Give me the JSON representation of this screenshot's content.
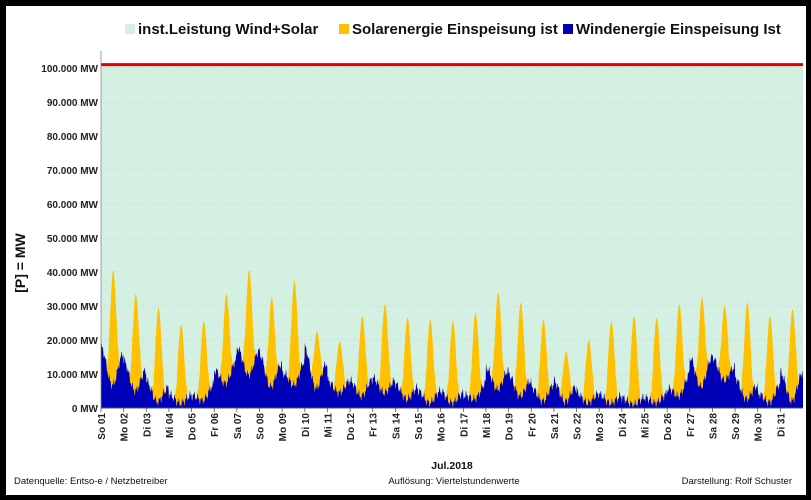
{
  "colors": {
    "installed": "#d4f0e2",
    "solar": "#ffc000",
    "wind": "#0000b8",
    "installed_line": "#e00000",
    "grid": "#9fbfaf"
  },
  "chart_data": {
    "type": "area",
    "stacked": true,
    "title": "",
    "xlabel": "Jul.2018",
    "ylabel": "[P] =   MW",
    "ylim": [
      0,
      105000
    ],
    "grid": true,
    "legend_position": "top",
    "legend": [
      {
        "name": "inst.Leistung Wind+Solar",
        "color": "#d4f0e2"
      },
      {
        "name": "Solarenergie Einspeisung ist",
        "color": "#ffc000"
      },
      {
        "name": "Windenergie Einspeisung Ist",
        "color": "#0000b8"
      }
    ],
    "y_ticks": [
      {
        "value": 0,
        "label": "0 MW"
      },
      {
        "value": 10000,
        "label": "10.000 MW"
      },
      {
        "value": 20000,
        "label": "20.000 MW"
      },
      {
        "value": 30000,
        "label": "30.000 MW"
      },
      {
        "value": 40000,
        "label": "40.000 MW"
      },
      {
        "value": 50000,
        "label": "50.000 MW"
      },
      {
        "value": 60000,
        "label": "60.000 MW"
      },
      {
        "value": 70000,
        "label": "70.000 MW"
      },
      {
        "value": 80000,
        "label": "80.000 MW"
      },
      {
        "value": 90000,
        "label": "90.000 MW"
      },
      {
        "value": 100000,
        "label": "100.000 MW"
      }
    ],
    "x_labels": [
      "So 01",
      "Mo 02",
      "Di 03",
      "Mi 04",
      "Do 05",
      "Fr 06",
      "Sa 07",
      "So 08",
      "Mo 09",
      "Di 10",
      "Mi 11",
      "Do 12",
      "Fr 13",
      "Sa 14",
      "So 15",
      "Mo 16",
      "Di 17",
      "Mi 18",
      "Do 19",
      "Fr 20",
      "Sa 21",
      "So 22",
      "Mo 23",
      "Di 24",
      "Mi 25",
      "Do 26",
      "Fr 27",
      "Sa 28",
      "So 29",
      "Mo 30",
      "Di 31"
    ],
    "installed_capacity": 101000,
    "series": [
      {
        "name": "Windenergie Einspeisung Ist",
        "daily_min": [
          7000,
          6000,
          2000,
          1500,
          1000,
          6000,
          11000,
          6000,
          7000,
          6000,
          5000,
          3000,
          5000,
          3000,
          1500,
          1500,
          1500,
          6000,
          4000,
          2000,
          2000,
          1500,
          1500,
          1000,
          1000,
          3000,
          5000,
          10000,
          3000,
          1500,
          2000
        ],
        "daily_max": [
          18000,
          14000,
          8000,
          4000,
          3500,
          11000,
          18000,
          16000,
          10000,
          18000,
          8000,
          8000,
          9000,
          7000,
          5000,
          5000,
          3500,
          12000,
          10000,
          6000,
          8000,
          4500,
          4000,
          3000,
          3000,
          5500,
          15000,
          15000,
          9000,
          4000,
          10500
        ]
      },
      {
        "name": "Solarenergie Einspeisung ist",
        "daily_peak_total": [
          40500,
          33500,
          29500,
          24500,
          25500,
          33500,
          40500,
          32500,
          37500,
          22500,
          19500,
          27000,
          30500,
          26500,
          26000,
          25500,
          28000,
          34000,
          31000,
          26000,
          16500,
          20000,
          25500,
          27000,
          26500,
          30500,
          32500,
          30000,
          31000,
          27000,
          29000
        ]
      }
    ],
    "annotations": {
      "source": "Datenquelle:  Entso-e  / Netzbetreiber",
      "resolution": "Auflösung: Viertelstundenwerte",
      "author": "Darstellung: Rolf Schuster"
    }
  }
}
